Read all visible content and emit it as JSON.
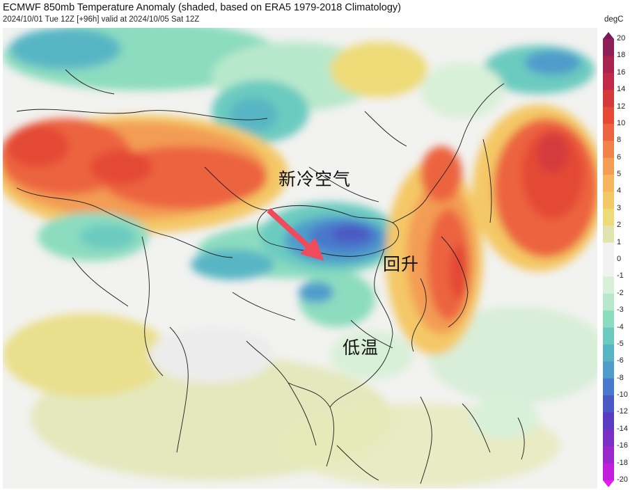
{
  "header": {
    "title": "ECMWF 850mb Temperature Anomaly (shaded, based on ERA5 1979-2018 Climatology)",
    "subtitle": "2024/10/01 Tue 12Z [+96h] valid at 2024/10/05 Sat 12Z"
  },
  "annotations": {
    "new_cold_air": "新冷空气",
    "rebound": "回升",
    "low_temp": "低温"
  },
  "colorbar": {
    "unit": "degC",
    "ticks": [
      "20",
      "18",
      "16",
      "14",
      "12",
      "10",
      "8",
      "6",
      "5",
      "4",
      "3",
      "2",
      "1",
      "0",
      "-1",
      "-2",
      "-3",
      "-4",
      "-5",
      "-6",
      "-8",
      "-10",
      "-12",
      "-14",
      "-16",
      "-18",
      "-20"
    ],
    "colors": {
      "20": "#7a1a5c",
      "18": "#8e1f57",
      "16": "#a8244e",
      "14": "#c02a48",
      "12": "#d43a3c",
      "10": "#e44a34",
      "8": "#ec6440",
      "6": "#f0824a",
      "5": "#f39c54",
      "4": "#f6b55e",
      "3": "#f4c866",
      "2": "#eedb78",
      "1": "#e2e4b0",
      "0": "#f2f2f2",
      "-1": "#d9f0d8",
      "-2": "#b8e8cc",
      "-3": "#8cdcc0",
      "-4": "#6ccbc0",
      "-5": "#58b6c4",
      "-6": "#4f9ccb",
      "-8": "#4a78cc",
      "-10": "#4c58c4",
      "-12": "#5a3cc0",
      "-14": "#7a30c4",
      "-16": "#9c28cc",
      "-18": "#c020dc",
      "-20": "#e818f0"
    }
  }
}
